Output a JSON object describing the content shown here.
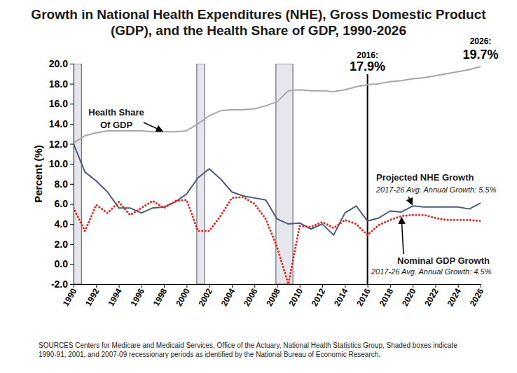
{
  "chart_data": {
    "type": "line",
    "title": "Growth in National Health Expenditures (NHE), Gross Domestic Product (GDP), and the Health Share of GDP, 1990-2026",
    "ylabel": "Percent (%)",
    "x": [
      1990,
      1991,
      1992,
      1993,
      1994,
      1995,
      1996,
      1997,
      1998,
      1999,
      2000,
      2001,
      2002,
      2003,
      2004,
      2005,
      2006,
      2007,
      2008,
      2009,
      2010,
      2011,
      2012,
      2013,
      2014,
      2015,
      2016,
      2017,
      2018,
      2019,
      2020,
      2021,
      2022,
      2023,
      2024,
      2025,
      2026
    ],
    "xlim": [
      1990,
      2026
    ],
    "xticks": [
      1990,
      1992,
      1994,
      1996,
      1998,
      2000,
      2002,
      2004,
      2006,
      2008,
      2010,
      2012,
      2014,
      2016,
      2018,
      2020,
      2022,
      2024,
      2026
    ],
    "ylim": [
      -2,
      20
    ],
    "yticks": [
      {
        "value": -2,
        "label": "-2.0"
      },
      {
        "value": 0,
        "label": "0.0"
      },
      {
        "value": 2,
        "label": "2.0"
      },
      {
        "value": 4,
        "label": "4.0"
      },
      {
        "value": 6,
        "label": "6.0"
      },
      {
        "value": 8,
        "label": "8.0"
      },
      {
        "value": 10,
        "label": "10.0"
      },
      {
        "value": 12,
        "label": "12.0"
      },
      {
        "value": 14,
        "label": "14.0"
      },
      {
        "value": 16,
        "label": "16.0"
      },
      {
        "value": 18,
        "label": "18.0"
      },
      {
        "value": 20,
        "label": "20.0"
      }
    ],
    "grid": false,
    "series": [
      {
        "name": "Health Share Of GDP",
        "color": "#a6a6a6",
        "line_style": "solid",
        "values": [
          12.1,
          12.8,
          13.1,
          13.3,
          13.3,
          13.3,
          13.3,
          13.2,
          13.2,
          13.2,
          13.3,
          14.0,
          14.8,
          15.3,
          15.4,
          15.4,
          15.5,
          15.8,
          16.2,
          17.3,
          17.4,
          17.3,
          17.3,
          17.2,
          17.4,
          17.7,
          17.9,
          18.0,
          18.2,
          18.3,
          18.5,
          18.6,
          18.8,
          19.0,
          19.2,
          19.4,
          19.7
        ]
      },
      {
        "name": "Projected NHE Growth",
        "color": "#4d5b78",
        "line_style": "solid",
        "annotation": "2017-26 Avg. Annual Growth: 5.5%",
        "values": [
          12.0,
          9.2,
          8.3,
          7.2,
          5.6,
          5.6,
          5.1,
          5.6,
          5.7,
          6.2,
          7.0,
          8.6,
          9.5,
          8.5,
          7.2,
          6.8,
          6.6,
          6.4,
          4.5,
          4.0,
          4.1,
          3.5,
          4.0,
          2.9,
          5.1,
          5.8,
          4.3,
          4.6,
          5.3,
          5.2,
          5.8,
          5.7,
          5.7,
          5.7,
          5.7,
          5.5,
          6.1
        ]
      },
      {
        "name": "Nominal GDP Growth",
        "color": "#e8251f",
        "line_style": "dotted",
        "annotation": "2017-26 Avg. Annual Growth: 4.5%",
        "values": [
          5.6,
          3.3,
          5.9,
          5.1,
          6.2,
          4.9,
          5.6,
          6.3,
          5.6,
          6.3,
          6.4,
          3.3,
          3.3,
          4.8,
          6.6,
          6.7,
          6.0,
          4.5,
          1.7,
          -2.0,
          3.8,
          3.7,
          4.2,
          3.6,
          4.4,
          4.0,
          2.9,
          3.9,
          4.4,
          4.8,
          4.9,
          4.9,
          4.6,
          4.4,
          4.4,
          4.4,
          4.3
        ]
      }
    ],
    "recessions": [
      {
        "start": 1990,
        "end": 1990.7
      },
      {
        "start": 2000.9,
        "end": 2001.6
      },
      {
        "start": 2007.9,
        "end": 2009.4
      }
    ],
    "annotations": [
      {
        "type": "vline",
        "x": 2016,
        "label": "2016:",
        "value_label": "17.9%"
      },
      {
        "type": "text",
        "x": 2026,
        "label": "2026:",
        "value_label": "19.7%"
      }
    ],
    "source": [
      "SOURCES Centers for Medicare and Medicaid Services, Office of the Actuary, National Health Statistics Group, Shaded boxes indicate",
      "1990-91, 2001, and 2007-09 recessionary periods as identified by the National Bureau of Economic Research."
    ]
  }
}
